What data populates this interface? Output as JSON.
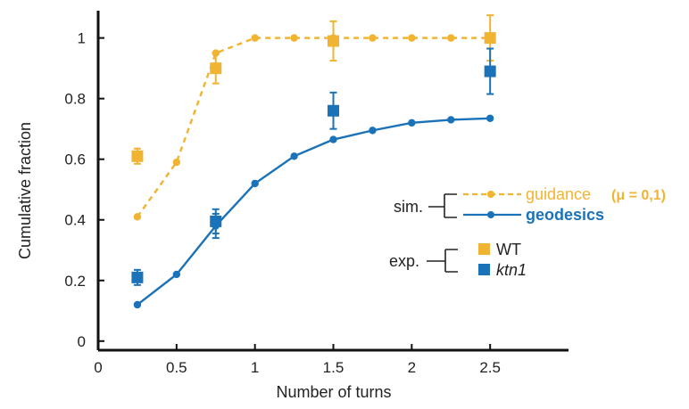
{
  "chart_data": {
    "type": "line",
    "xlabel": "Number of turns",
    "ylabel": "Cumulative fraction",
    "xlim": [
      0,
      3.0
    ],
    "ylim": [
      -0.03,
      1.09
    ],
    "xticks": [
      0,
      0.5,
      1,
      1.5,
      2,
      2.5
    ],
    "xtick_labels": [
      "0",
      "0.5",
      "1",
      "1.5",
      "2",
      "2.5"
    ],
    "yticks": [
      0,
      0.2,
      0.4,
      0.6,
      0.8,
      1
    ],
    "ytick_labels": [
      "0",
      "0.2",
      "0.4",
      "0.6",
      "0.8",
      "1"
    ],
    "grid": false,
    "legend_position": "right",
    "colors": {
      "orange": "#f0b432",
      "blue": "#1a72b8"
    },
    "simulation_series": [
      {
        "name": "guidance",
        "style": "dashed",
        "color": "#f0b432",
        "x": [
          0.25,
          0.5,
          0.75,
          1,
          1.25,
          1.5,
          1.75,
          2,
          2.25,
          2.5
        ],
        "y": [
          0.41,
          0.59,
          0.95,
          1.0,
          1.0,
          1.0,
          1.0,
          1.0,
          1.0,
          1.0
        ],
        "err": [
          0,
          0,
          0,
          0,
          0,
          0,
          0,
          0,
          0,
          0
        ]
      },
      {
        "name": "geodesics",
        "style": "solid",
        "color": "#1a72b8",
        "x": [
          0.25,
          0.5,
          0.75,
          1,
          1.25,
          1.5,
          1.75,
          2,
          2.25,
          2.5
        ],
        "y": [
          0.12,
          0.22,
          0.38,
          0.52,
          0.61,
          0.665,
          0.695,
          0.72,
          0.73,
          0.735
        ],
        "err": [
          0,
          0,
          0.04,
          0,
          0,
          0,
          0,
          0,
          0,
          0
        ]
      }
    ],
    "experiment_series": [
      {
        "name": "WT",
        "color": "#f0b432",
        "x": [
          0.25,
          0.75,
          1.5,
          2.5
        ],
        "y": [
          0.61,
          0.9,
          0.99,
          1.0
        ],
        "err": [
          0.025,
          0.05,
          0.065,
          0.075
        ]
      },
      {
        "name": "ktn1",
        "color": "#1a72b8",
        "x": [
          0.25,
          0.75,
          1.5,
          2.5
        ],
        "y": [
          0.21,
          0.395,
          0.76,
          0.89
        ],
        "err": [
          0.025,
          0.04,
          0.06,
          0.075
        ]
      }
    ],
    "legend": {
      "sim_label": "sim.",
      "exp_label": "exp.",
      "guidance_label": "guidance",
      "mu_label": "(μ = 0,1)",
      "geodesics_label": "geodesics",
      "wt_label": "WT",
      "ktn1_label": "ktn1"
    }
  }
}
